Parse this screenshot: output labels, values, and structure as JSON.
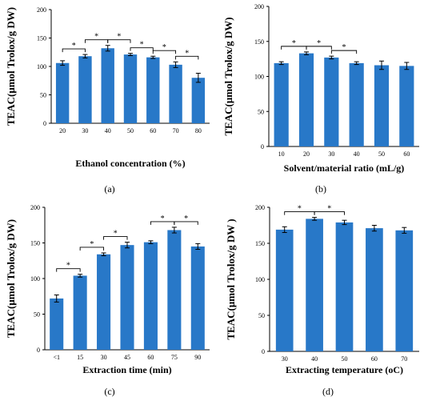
{
  "chart_data": [
    {
      "type": "bar",
      "panel": "(a)",
      "categories": [
        "20",
        "30",
        "40",
        "50",
        "60",
        "70",
        "80"
      ],
      "values": [
        106,
        118,
        132,
        121,
        116,
        103,
        80
      ],
      "errors": [
        4,
        3,
        5,
        2,
        2,
        5,
        8
      ],
      "xlabel": "Ethanol concentration (%)",
      "ylabel": "TEAC(μmol Trolox/g DW)",
      "ylim": [
        0,
        200
      ],
      "yticks": [
        0,
        50,
        100,
        150,
        200
      ],
      "bar_color": "#2878c8",
      "significance": [
        [
          0,
          1
        ],
        [
          1,
          2
        ],
        [
          2,
          3
        ],
        [
          3,
          4
        ],
        [
          4,
          5
        ],
        [
          5,
          6
        ]
      ],
      "significance_label": "*"
    },
    {
      "type": "bar",
      "panel": "(b)",
      "categories": [
        "10",
        "20",
        "30",
        "40",
        "50",
        "60"
      ],
      "values": [
        119,
        133,
        127,
        119,
        116,
        115
      ],
      "errors": [
        2,
        2,
        2,
        2,
        6,
        5
      ],
      "xlabel": "Solvent/material ratio (mL/g)",
      "ylabel": "TEAC(μmol Trolox/g DW)",
      "ylim": [
        0,
        200
      ],
      "yticks": [
        0,
        50,
        100,
        150,
        200
      ],
      "bar_color": "#2878c8",
      "significance": [
        [
          0,
          1
        ],
        [
          1,
          2
        ],
        [
          2,
          3
        ]
      ],
      "significance_label": "*"
    },
    {
      "type": "bar",
      "panel": "(c)",
      "categories": [
        "<1",
        "15",
        "30",
        "45",
        "60",
        "75",
        "90"
      ],
      "values": [
        72,
        104,
        134,
        147,
        151,
        168,
        145
      ],
      "errors": [
        5,
        2,
        2,
        4,
        2,
        4,
        4
      ],
      "xlabel": "Extraction time (min)",
      "ylabel": "TEAC(μmol Trolox/g DW)",
      "ylim": [
        0,
        200
      ],
      "yticks": [
        0,
        50,
        100,
        150,
        200
      ],
      "bar_color": "#2878c8",
      "significance": [
        [
          0,
          1
        ],
        [
          1,
          2
        ],
        [
          2,
          3
        ],
        [
          4,
          5
        ],
        [
          5,
          6
        ]
      ],
      "significance_label": "*"
    },
    {
      "type": "bar",
      "panel": "(d)",
      "categories": [
        "30",
        "40",
        "50",
        "60",
        "70"
      ],
      "values": [
        169,
        184,
        179,
        171,
        168
      ],
      "errors": [
        4,
        2,
        3,
        4,
        4
      ],
      "xlabel": "Extracting temperature (oC)",
      "ylabel": "TEAC(μmol Trolox/g DW )",
      "ylim": [
        0,
        200
      ],
      "yticks": [
        0,
        50,
        100,
        150,
        200
      ],
      "bar_color": "#2878c8",
      "significance": [
        [
          0,
          1
        ],
        [
          1,
          2
        ]
      ],
      "significance_label": "*"
    }
  ]
}
